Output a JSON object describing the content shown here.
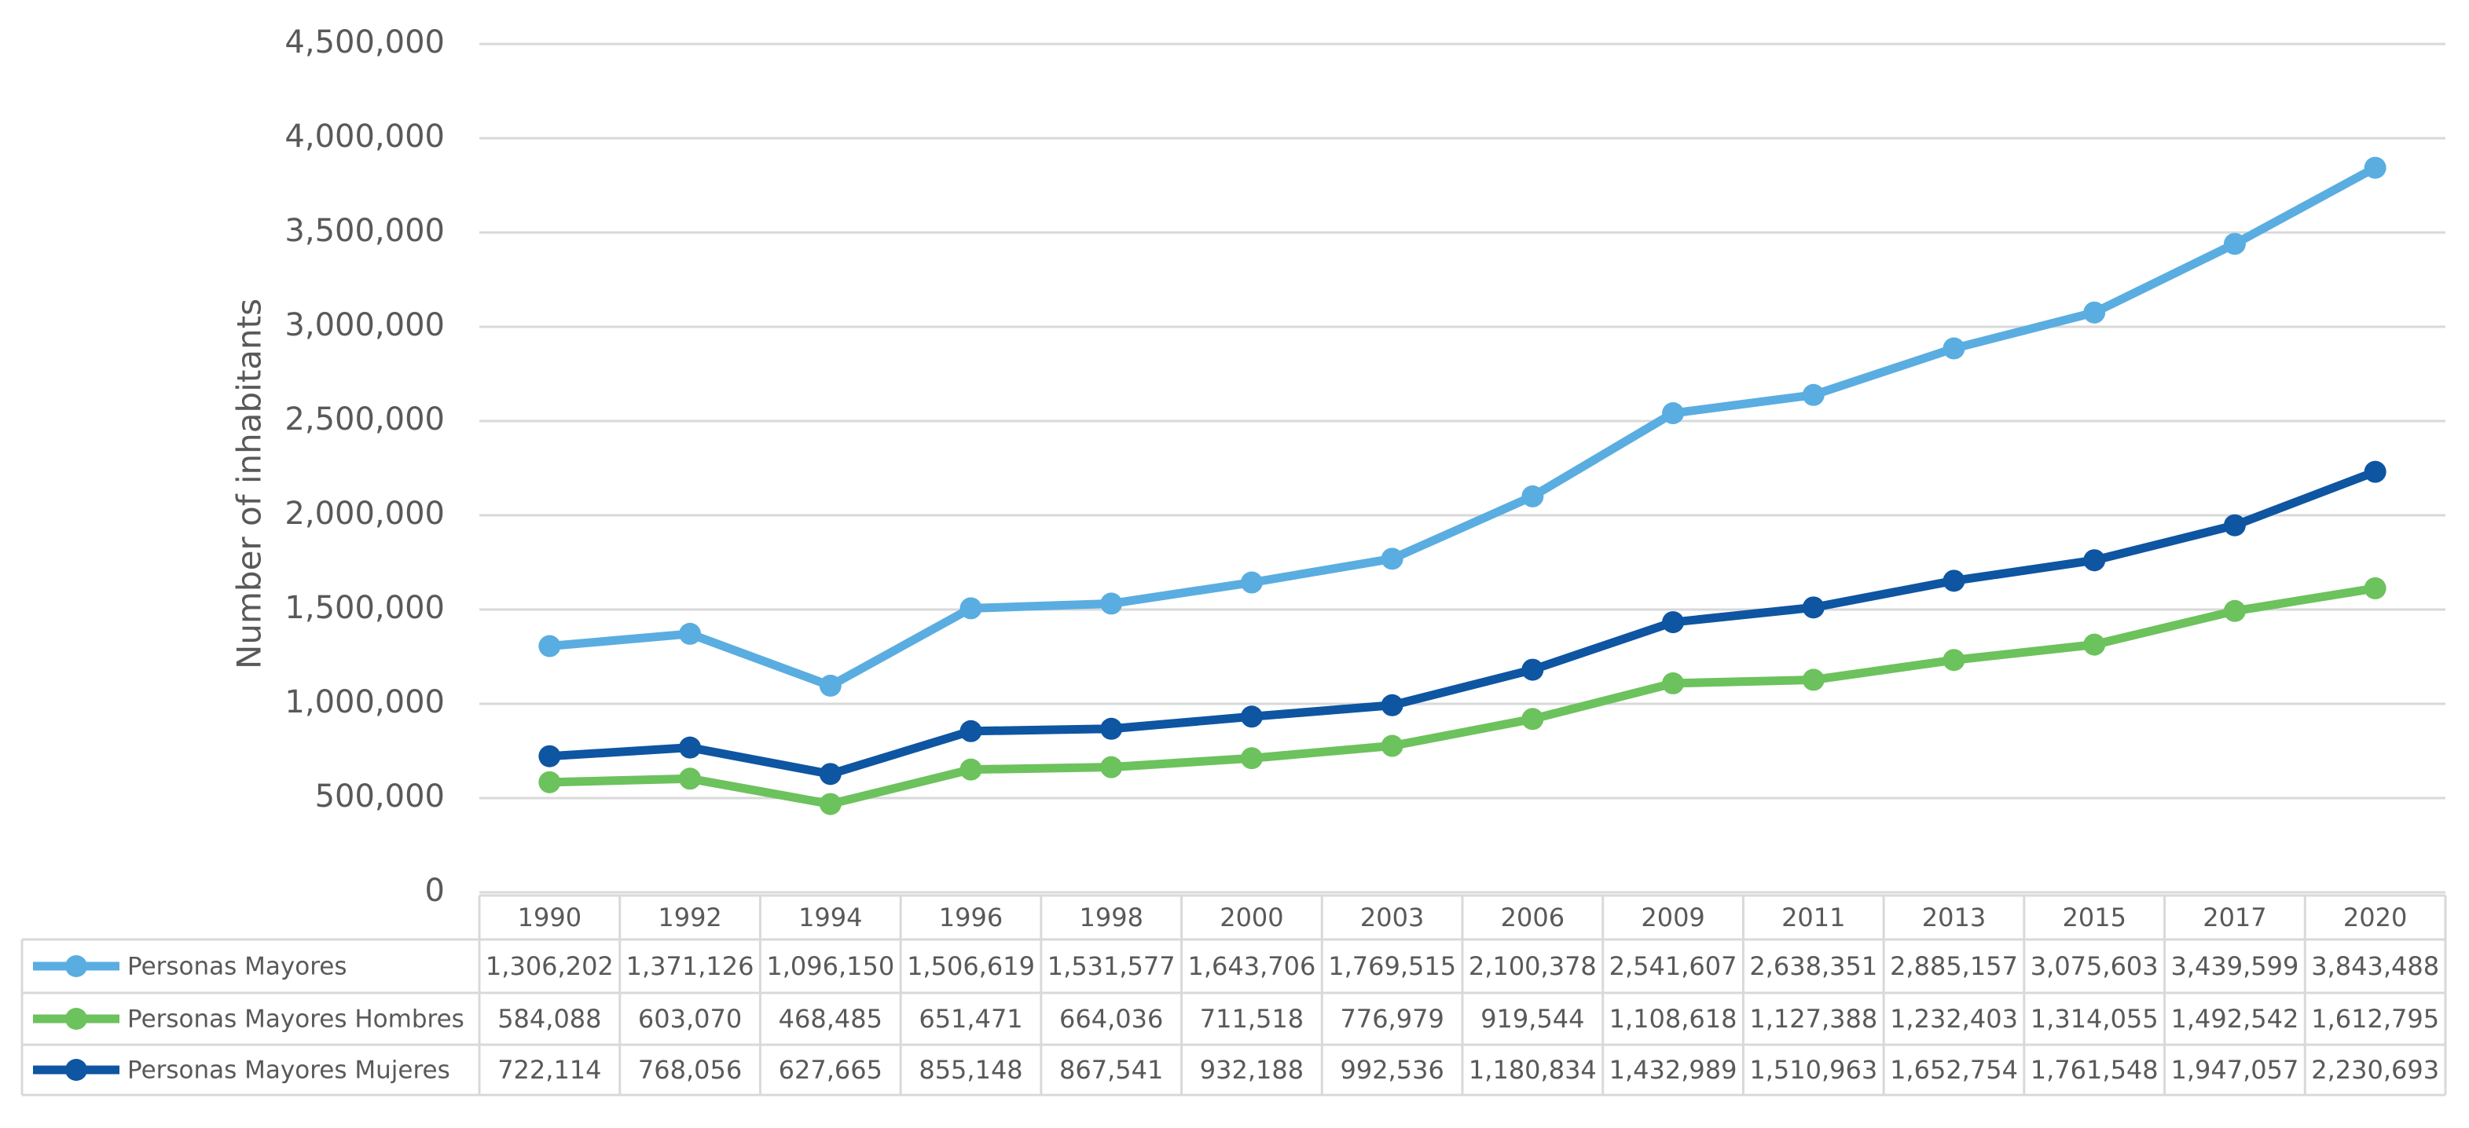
{
  "chart_data": {
    "type": "line",
    "y_label": "Number of inhabitants",
    "categories": [
      "1990",
      "1992",
      "1994",
      "1996",
      "1998",
      "2000",
      "2003",
      "2006",
      "2009",
      "2011",
      "2013",
      "2015",
      "2017",
      "2020"
    ],
    "ylim": [
      0,
      4500000
    ],
    "yticks": [
      0,
      {
        "value": 500000,
        "label": "500,000"
      },
      {
        "value": 1000000,
        "label": "1,000,000"
      },
      {
        "value": 1500000,
        "label": "1,500,000"
      },
      {
        "value": 2000000,
        "label": "2,000,000"
      },
      {
        "value": 2500000,
        "label": "2,500,000"
      },
      {
        "value": 3000000,
        "label": "3,000,000"
      },
      {
        "value": 3500000,
        "label": "3,500,000"
      },
      {
        "value": 4000000,
        "label": "4,000,000"
      },
      {
        "value": 4500000,
        "label": "4,500,000"
      }
    ],
    "grid": true,
    "series": [
      {
        "name": "Personas Mayores",
        "color": "#5aade0",
        "values": [
          1306202,
          1371126,
          1096150,
          1506619,
          1531577,
          1643706,
          1769515,
          2100378,
          2541607,
          2638351,
          2885157,
          3075603,
          3439599,
          3843488
        ],
        "value_labels": [
          "1,306,202",
          "1,371,126",
          "1,096,150",
          "1,506,619",
          "1,531,577",
          "1,643,706",
          "1,769,515",
          "2,100,378",
          "2,541,607",
          "2,638,351",
          "2,885,157",
          "3,075,603",
          "3,439,599",
          "3,843,488"
        ]
      },
      {
        "name": "Personas Mayores Hombres",
        "color": "#6cc25c",
        "values": [
          584088,
          603070,
          468485,
          651471,
          664036,
          711518,
          776979,
          919544,
          1108618,
          1127388,
          1232403,
          1314055,
          1492542,
          1612795
        ],
        "value_labels": [
          "584,088",
          "603,070",
          "468,485",
          "651,471",
          "664,036",
          "711,518",
          "776,979",
          "919,544",
          "1,108,618",
          "1,127,388",
          "1,232,403",
          "1,314,055",
          "1,492,542",
          "1,612,795"
        ]
      },
      {
        "name": "Personas Mayores Mujeres",
        "color": "#0e55a2",
        "values": [
          722114,
          768056,
          627665,
          855148,
          867541,
          932188,
          992536,
          1180834,
          1432989,
          1510963,
          1652754,
          1761548,
          1947057,
          2230693
        ],
        "value_labels": [
          "722,114",
          "768,056",
          "627,665",
          "855,148",
          "867,541",
          "932,188",
          "992,536",
          "1,180,834",
          "1,432,989",
          "1,510,963",
          "1,652,754",
          "1,761,548",
          "1,947,057",
          "2,230,693"
        ]
      }
    ]
  }
}
